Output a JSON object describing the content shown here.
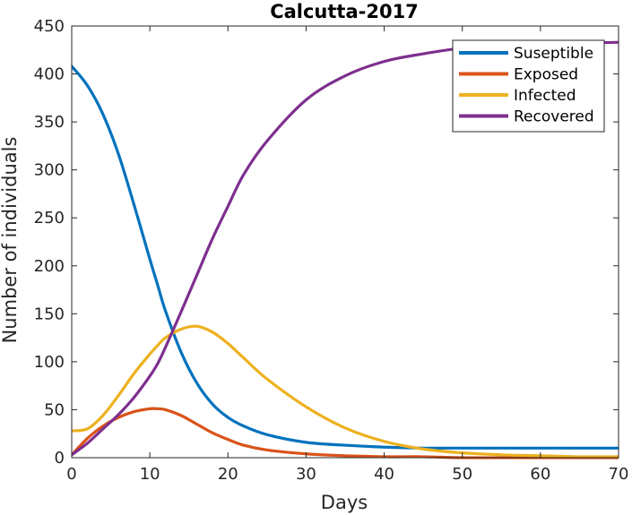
{
  "chart_data": {
    "type": "line",
    "title": "Calcutta-2017",
    "xlabel": "Days",
    "ylabel": "Number of individuals",
    "xlim": [
      0,
      70
    ],
    "ylim": [
      0,
      450
    ],
    "xticks": [
      0,
      10,
      20,
      30,
      40,
      50,
      60,
      70
    ],
    "yticks": [
      0,
      50,
      100,
      150,
      200,
      250,
      300,
      350,
      400,
      450
    ],
    "grid": false,
    "legend_position": "top-right",
    "x": [
      0,
      2,
      4,
      6,
      8,
      10,
      11,
      12,
      14,
      16,
      18,
      20,
      22,
      25,
      30,
      35,
      40,
      45,
      50,
      55,
      60,
      65,
      70
    ],
    "series": [
      {
        "name": "Suseptible",
        "color": "#0072BD",
        "values": [
          408,
          388,
          358,
          316,
          263,
          207,
          180,
          153,
          110,
          78,
          56,
          42,
          33,
          24,
          16,
          13,
          11,
          10,
          10,
          10,
          10,
          10,
          10
        ]
      },
      {
        "name": "Exposed",
        "color": "#D95319",
        "values": [
          3,
          20,
          33,
          42,
          48,
          51,
          51,
          50,
          44,
          35,
          26,
          19,
          13,
          8,
          4,
          2,
          1,
          1,
          0,
          0,
          0,
          0,
          0
        ]
      },
      {
        "name": "Infected",
        "color": "#EDB120",
        "values": [
          28,
          30,
          44,
          65,
          88,
          108,
          117,
          125,
          134,
          137,
          131,
          119,
          104,
          82,
          53,
          31,
          17,
          9,
          5,
          3,
          2,
          1,
          1
        ]
      },
      {
        "name": "Recovered",
        "color": "#7E2F8E",
        "values": [
          3,
          15,
          30,
          45,
          63,
          85,
          98,
          115,
          152,
          190,
          228,
          262,
          295,
          330,
          373,
          398,
          413,
          421,
          427,
          430,
          432,
          432,
          433
        ]
      }
    ]
  }
}
